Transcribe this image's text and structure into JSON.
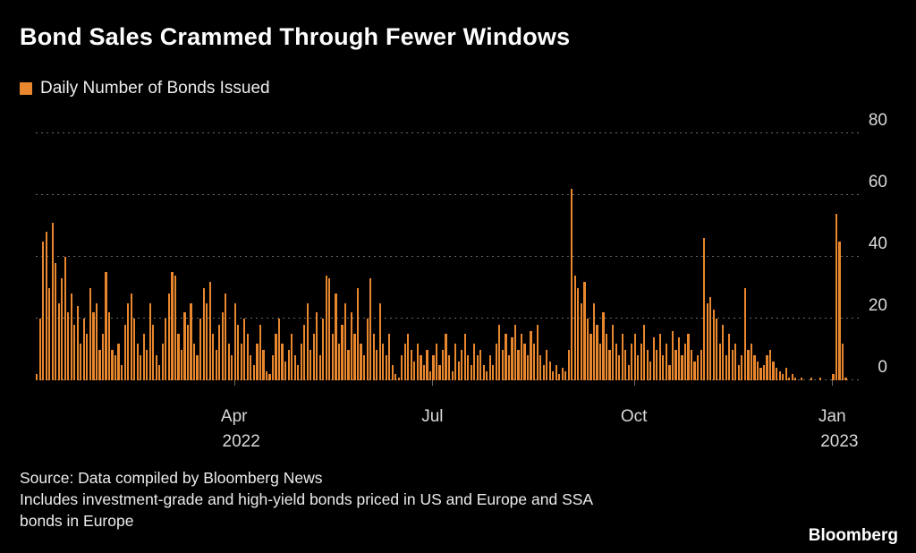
{
  "title": "Bond Sales Crammed Through Fewer Windows",
  "legend": {
    "label": "Daily Number of Bonds Issued",
    "swatch_color": "#E8872E"
  },
  "colors": {
    "background": "#000000",
    "bar": "#E8872E",
    "grid": "#6A6A6A",
    "axis_text": "#D9D9D9",
    "title_text": "#FFFFFF"
  },
  "source": {
    "lines": [
      "Source: Data compiled by Bloomberg News",
      "Includes investment-grade and high-yield bonds priced in US and Europe and SSA",
      "bonds in Europe"
    ]
  },
  "brand": "Bloomberg",
  "chart_data": {
    "type": "bar",
    "title": "Daily Number of Bonds Issued",
    "xlabel": "",
    "ylabel": "",
    "ylim": [
      0,
      80
    ],
    "yticks": [
      0,
      20,
      40,
      60,
      80
    ],
    "grid": "horizontal-dotted",
    "legend_position": "top-left",
    "bar_color": "#E8872E",
    "x_unit": "trading day, early Jan 2022 through mid-Jan 2023",
    "total_slots": 262,
    "xticks": [
      {
        "index": 63,
        "label": "Apr",
        "sublabel": "2022"
      },
      {
        "index": 126,
        "label": "Jul",
        "sublabel": ""
      },
      {
        "index": 190,
        "label": "Oct",
        "sublabel": ""
      },
      {
        "index": 253,
        "label": "Jan",
        "sublabel": "2023"
      }
    ],
    "values": [
      2,
      20,
      45,
      48,
      30,
      51,
      38,
      25,
      33,
      40,
      22,
      28,
      18,
      24,
      12,
      20,
      15,
      30,
      22,
      25,
      10,
      15,
      35,
      22,
      10,
      8,
      12,
      5,
      18,
      25,
      28,
      20,
      12,
      8,
      15,
      10,
      25,
      18,
      8,
      5,
      12,
      20,
      28,
      35,
      34,
      15,
      10,
      22,
      18,
      25,
      12,
      8,
      20,
      30,
      25,
      32,
      15,
      10,
      18,
      22,
      28,
      12,
      8,
      25,
      18,
      12,
      20,
      15,
      8,
      5,
      12,
      18,
      10,
      3,
      2,
      8,
      15,
      20,
      12,
      6,
      10,
      15,
      8,
      5,
      12,
      18,
      25,
      10,
      15,
      22,
      8,
      20,
      34,
      33,
      15,
      28,
      12,
      18,
      25,
      10,
      22,
      15,
      30,
      12,
      8,
      20,
      33,
      15,
      10,
      25,
      12,
      8,
      15,
      5,
      2,
      1,
      8,
      12,
      15,
      10,
      6,
      12,
      8,
      5,
      10,
      3,
      8,
      12,
      5,
      10,
      15,
      8,
      3,
      12,
      6,
      10,
      15,
      8,
      5,
      12,
      8,
      10,
      5,
      3,
      8,
      5,
      12,
      18,
      10,
      15,
      8,
      14,
      18,
      10,
      15,
      12,
      8,
      16,
      12,
      18,
      8,
      5,
      10,
      6,
      3,
      5,
      2,
      4,
      3,
      10,
      62,
      34,
      30,
      25,
      32,
      20,
      15,
      25,
      18,
      12,
      22,
      15,
      10,
      18,
      12,
      8,
      15,
      10,
      5,
      12,
      15,
      8,
      12,
      18,
      10,
      6,
      14,
      10,
      15,
      8,
      12,
      5,
      16,
      10,
      14,
      8,
      12,
      15,
      10,
      6,
      8,
      10,
      46,
      25,
      27,
      23,
      20,
      12,
      18,
      8,
      15,
      10,
      12,
      5,
      8,
      30,
      10,
      12,
      8,
      6,
      4,
      5,
      8,
      10,
      6,
      4,
      3,
      2,
      4,
      1,
      2,
      1,
      0,
      1,
      0,
      0,
      1,
      0,
      0,
      1,
      0,
      0,
      0,
      2,
      54,
      45,
      12,
      1
    ]
  }
}
